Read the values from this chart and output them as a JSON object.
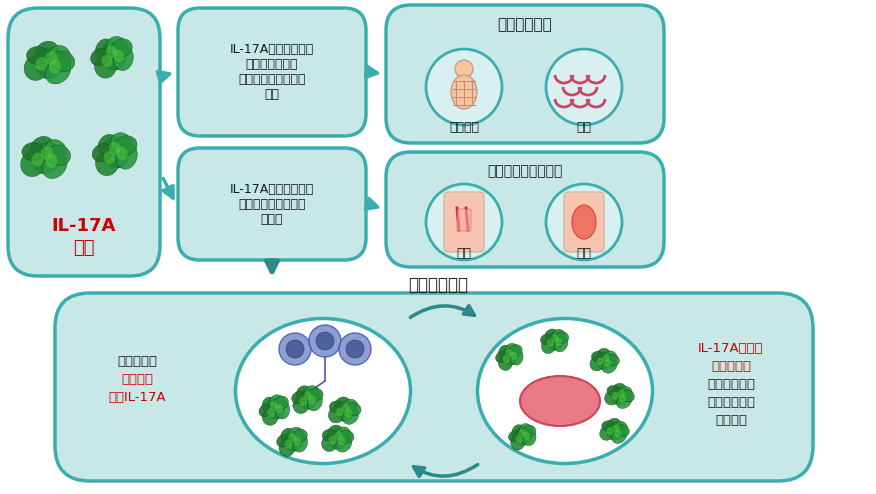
{
  "bg_color": "#ffffff",
  "teal_fill": "#c8e8e8",
  "teal_fill_light": "#d5eded",
  "teal_border": "#3aaeae",
  "teal_dark": "#2a8a8a",
  "arrow_color": "#3aaeae",
  "red_text": "#cc0000",
  "black_text": "#1a1a1a",
  "circle_fill": "#d8f0f0",
  "circle_border": "#3aaeae",
  "skin_color": "#f5c5a0",
  "scale_color": "#cc4466",
  "arm_color": "#f5c5b0",
  "pink_oval": "#e87a88",
  "blue_cell": "#8899cc",
  "box1_label1": "IL-17A",
  "box1_label2": "过多",
  "box2_text": "IL-17A向皮肤发送信\n号（角质形成细\n胞），造成皮肤角质\n过多",
  "box3_text": "IL-17A向抗感染细胞\n发送信号，集中到感\n染部位",
  "box4_title": "皮肤角质过多",
  "box4_label1": "皮肤增厚",
  "box4_label2": "鳞屑",
  "box5_title": "抗感染细胞造成炎症",
  "box5_label1": "瘙痒",
  "box5_label2": "发红",
  "cycle_title": "炎症恶性循环",
  "cycle_left_text1": "抗感染细胞",
  "cycle_left_text2": "产生越来",
  "cycle_left_text3": "越多IL-17A",
  "cycle_right_text1": "IL-17A错误地",
  "cycle_right_text2": "持续发送信",
  "cycle_right_text3": "号，形成更多",
  "cycle_right_text4": "角质和吸引抗",
  "cycle_right_text5": "感染细胞"
}
